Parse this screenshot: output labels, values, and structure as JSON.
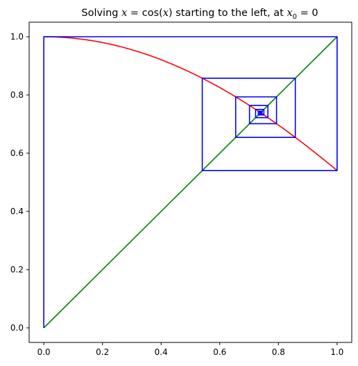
{
  "chart_data": {
    "type": "line",
    "title_parts": {
      "prefix": "Solving ",
      "eq_x": "x",
      "eq_mid": " = cos(",
      "eq_x2": "x",
      "eq_close": ")",
      "middle": " starting to the left, at ",
      "sub_var": "x",
      "sub_index": "0",
      "suffix": " =  0"
    },
    "xlim": [
      -0.05,
      1.05
    ],
    "ylim": [
      -0.05,
      1.05
    ],
    "xticks": [
      0.0,
      0.2,
      0.4,
      0.6,
      0.8,
      1.0
    ],
    "yticks": [
      0.0,
      0.2,
      0.4,
      0.6,
      0.8,
      1.0
    ],
    "xtick_labels": [
      "0.0",
      "0.2",
      "0.4",
      "0.6",
      "0.8",
      "1.0"
    ],
    "ytick_labels": [
      "0.0",
      "0.2",
      "0.4",
      "0.6",
      "0.8",
      "1.0"
    ],
    "grid": false,
    "series": [
      {
        "kind": "function",
        "function": "cos",
        "color": "#ff0000",
        "domain": [
          0,
          1
        ]
      },
      {
        "kind": "identity",
        "color": "#008000",
        "x": [
          0,
          1
        ],
        "y": [
          0,
          1
        ]
      },
      {
        "kind": "cobweb",
        "color": "#0000ff",
        "x0": 0,
        "iterations": 30
      }
    ]
  }
}
